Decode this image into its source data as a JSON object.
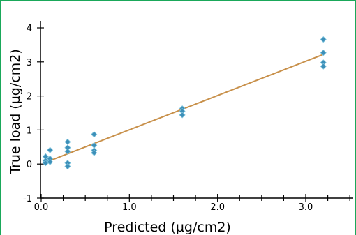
{
  "chart_data": {
    "type": "scatter",
    "xlabel": "Predicted (µg/cm2)",
    "ylabel": "True load (µg/cm2)",
    "xlim": [
      0,
      3.5
    ],
    "ylim": [
      -1,
      4
    ],
    "xticks": [
      0.0,
      1.0,
      2.0,
      3.0
    ],
    "xtick_labels": [
      "0.0",
      "1.0",
      "2.0",
      "3.0"
    ],
    "yticks": [
      -1,
      0,
      1,
      2,
      3,
      4
    ],
    "ytick_labels": [
      "-1",
      "0",
      "1",
      "2",
      "3",
      "4"
    ],
    "grid": false,
    "colors": {
      "points": "#3d8fb8",
      "points_light": "#7fc4dd",
      "fit_line": "#c8904a",
      "frame": "#1aa85a"
    },
    "series": [
      {
        "type": "scatter",
        "x": [
          0.05,
          0.05,
          0.05,
          0.1,
          0.1,
          0.1,
          0.3,
          0.3,
          0.3,
          0.3,
          0.3,
          0.6,
          0.6,
          0.6,
          0.6,
          1.6,
          1.6,
          1.6,
          3.2,
          3.2,
          3.2,
          3.2
        ],
        "y": [
          0.22,
          0.1,
          0.03,
          0.41,
          0.16,
          0.06,
          0.65,
          0.48,
          0.37,
          0.03,
          -0.07,
          0.87,
          0.55,
          0.4,
          0.33,
          1.63,
          1.55,
          1.44,
          3.66,
          3.27,
          2.98,
          2.87
        ]
      },
      {
        "type": "line",
        "x": [
          0.1,
          3.2
        ],
        "y": [
          0.1,
          3.22
        ]
      }
    ]
  }
}
